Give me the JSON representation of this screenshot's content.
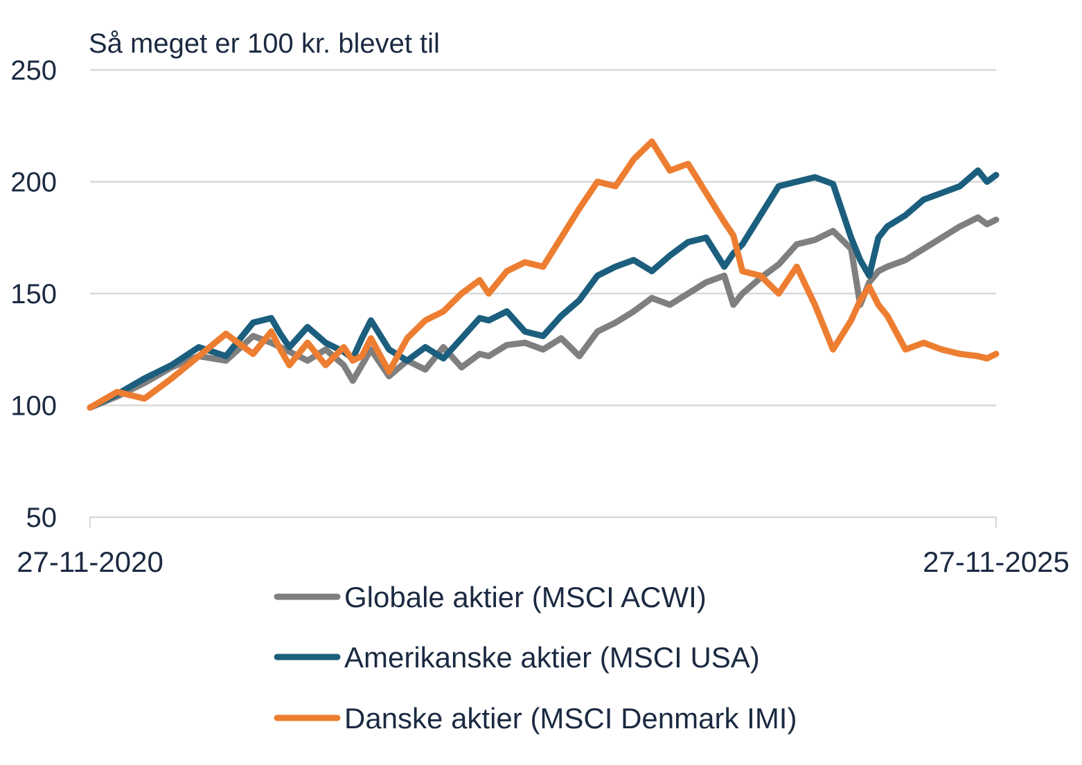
{
  "chart_data": {
    "type": "line",
    "title": "Så meget er 100 kr. blevet til",
    "xlabel": "",
    "ylabel": "",
    "ylim": [
      50,
      250
    ],
    "yticks": [
      50,
      100,
      150,
      200,
      250
    ],
    "xlim": [
      0,
      5
    ],
    "x_tick_labels": [
      "27-11-2020",
      "27-11-2025"
    ],
    "x_unit": "years since 27-11-2020",
    "grid": true,
    "legend_position": "bottom",
    "series": [
      {
        "name": "Globale aktier (MSCI ACWI)",
        "color": "#7f7f7f",
        "x": [
          0,
          0.15,
          0.3,
          0.45,
          0.6,
          0.75,
          0.9,
          1.0,
          1.05,
          1.1,
          1.2,
          1.3,
          1.4,
          1.45,
          1.5,
          1.55,
          1.65,
          1.75,
          1.85,
          1.95,
          2.05,
          2.15,
          2.2,
          2.3,
          2.4,
          2.5,
          2.6,
          2.7,
          2.8,
          2.9,
          3.0,
          3.1,
          3.2,
          3.3,
          3.4,
          3.5,
          3.55,
          3.6,
          3.7,
          3.8,
          3.9,
          4.0,
          4.1,
          4.2,
          4.25,
          4.3,
          4.35,
          4.4,
          4.5,
          4.6,
          4.7,
          4.8,
          4.9,
          4.95,
          5.0
        ],
        "values": [
          99,
          104,
          110,
          117,
          122,
          120,
          131,
          128,
          126,
          124,
          120,
          125,
          118,
          111,
          118,
          125,
          113,
          120,
          116,
          126,
          117,
          123,
          122,
          127,
          128,
          125,
          130,
          122,
          133,
          137,
          142,
          148,
          145,
          150,
          155,
          158,
          145,
          150,
          157,
          163,
          172,
          174,
          178,
          170,
          145,
          155,
          160,
          162,
          165,
          170,
          175,
          180,
          184,
          181,
          183
        ]
      },
      {
        "name": "Amerikanske aktier (MSCI USA)",
        "color": "#1b5e7d",
        "x": [
          0,
          0.15,
          0.3,
          0.45,
          0.6,
          0.75,
          0.9,
          1.0,
          1.05,
          1.1,
          1.2,
          1.3,
          1.4,
          1.45,
          1.5,
          1.55,
          1.65,
          1.75,
          1.85,
          1.95,
          2.05,
          2.15,
          2.2,
          2.3,
          2.4,
          2.5,
          2.6,
          2.7,
          2.8,
          2.9,
          3.0,
          3.1,
          3.2,
          3.3,
          3.4,
          3.5,
          3.55,
          3.6,
          3.7,
          3.8,
          3.9,
          4.0,
          4.1,
          4.2,
          4.25,
          4.3,
          4.35,
          4.4,
          4.5,
          4.6,
          4.7,
          4.8,
          4.9,
          4.95,
          5.0
        ],
        "values": [
          99,
          105,
          112,
          118,
          126,
          122,
          137,
          139,
          132,
          126,
          135,
          128,
          124,
          121,
          130,
          138,
          125,
          120,
          126,
          121,
          130,
          139,
          138,
          142,
          133,
          131,
          140,
          147,
          158,
          162,
          165,
          160,
          167,
          173,
          175,
          162,
          168,
          172,
          185,
          198,
          200,
          202,
          199,
          175,
          165,
          158,
          175,
          180,
          185,
          192,
          195,
          198,
          205,
          200,
          203
        ]
      },
      {
        "name": "Danske aktier (MSCI Denmark IMI)",
        "color": "#ed7d31",
        "x": [
          0,
          0.15,
          0.3,
          0.45,
          0.6,
          0.75,
          0.9,
          1.0,
          1.05,
          1.1,
          1.2,
          1.3,
          1.4,
          1.45,
          1.5,
          1.55,
          1.65,
          1.75,
          1.85,
          1.95,
          2.05,
          2.15,
          2.2,
          2.3,
          2.4,
          2.5,
          2.6,
          2.7,
          2.8,
          2.9,
          3.0,
          3.1,
          3.2,
          3.3,
          3.4,
          3.5,
          3.55,
          3.6,
          3.7,
          3.8,
          3.9,
          4.0,
          4.1,
          4.2,
          4.25,
          4.3,
          4.35,
          4.4,
          4.5,
          4.6,
          4.7,
          4.8,
          4.9,
          4.95,
          5.0
        ],
        "values": [
          99,
          106,
          103,
          112,
          122,
          132,
          123,
          133,
          125,
          118,
          128,
          118,
          126,
          120,
          122,
          130,
          115,
          130,
          138,
          142,
          150,
          156,
          150,
          160,
          164,
          162,
          175,
          188,
          200,
          198,
          210,
          218,
          205,
          208,
          195,
          182,
          176,
          160,
          158,
          150,
          162,
          145,
          125,
          138,
          147,
          153,
          145,
          140,
          125,
          128,
          125,
          123,
          122,
          121,
          123
        ]
      }
    ]
  }
}
